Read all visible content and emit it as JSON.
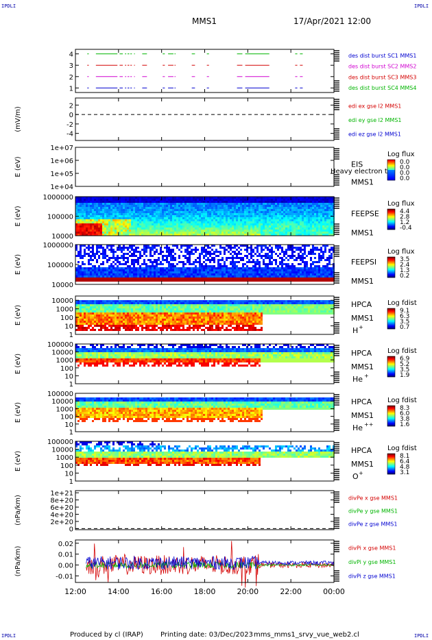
{
  "corner_tag": "IPDLI",
  "header": {
    "title": "MMS1",
    "datetime": "17/Apr/2021 12:00"
  },
  "footer": {
    "produced_by": "Produced by cl (IRAP)",
    "printing_date": "Printing date: 03/Dec/2023",
    "filename": "mms_mms1_srvy_vue_web2.cl"
  },
  "colors": {
    "red": "#d40000",
    "green": "#00b400",
    "blue": "#0000d0",
    "magenta": "#d000d0"
  },
  "chart_data": {
    "type": "multi-panel time series / spectrogram",
    "x": {
      "tick_labels": [
        "12:00",
        "14:00",
        "16:00",
        "18:00",
        "20:00",
        "22:00",
        "00:00"
      ],
      "tick_hours": [
        12,
        14,
        16,
        18,
        20,
        22,
        24
      ],
      "range_hours": [
        12,
        24
      ]
    },
    "panels": [
      {
        "id": "burst",
        "type": "timeline",
        "yticks": [
          "4",
          "3",
          "2",
          "1"
        ],
        "tick_values": [
          4,
          3,
          2,
          1
        ],
        "ylim": [
          0.6,
          4.4
        ],
        "legend": [
          {
            "text": "des dist burst SC1 MMS1",
            "color": "#0000d0"
          },
          {
            "text": "des dist burst SC2 MMS2",
            "color": "#d000d0"
          },
          {
            "text": "des dist burst SC3 MMS3",
            "color": "#d40000"
          },
          {
            "text": "des dist burst SC4 MMS4",
            "color": "#00b400"
          }
        ],
        "series": [
          {
            "level": 4,
            "color": "#00b400"
          },
          {
            "level": 3,
            "color": "#d40000"
          },
          {
            "level": 2,
            "color": "#d000d0"
          },
          {
            "level": 1,
            "color": "#0000d0"
          }
        ],
        "segments_hours": [
          [
            12.55,
            12.62
          ],
          [
            12.95,
            13.95
          ],
          [
            14.05,
            14.2
          ],
          [
            14.3,
            14.36
          ],
          [
            14.42,
            14.5
          ],
          [
            14.55,
            14.62
          ],
          [
            14.72,
            14.76
          ],
          [
            15.1,
            15.32
          ],
          [
            16.05,
            16.15
          ],
          [
            16.3,
            16.55
          ],
          [
            16.6,
            16.65
          ],
          [
            17.4,
            17.55
          ],
          [
            18.1,
            18.2
          ],
          [
            19.5,
            19.75
          ],
          [
            19.88,
            21.0
          ],
          [
            22.2,
            22.3
          ],
          [
            22.42,
            22.55
          ]
        ]
      },
      {
        "id": "edi",
        "type": "line",
        "ylabel": "(mV/m)",
        "yticks": [
          "2",
          "0",
          "-2",
          "-4"
        ],
        "tick_values": [
          2,
          0,
          -2,
          -4
        ],
        "ylim": [
          -5.5,
          3.5
        ],
        "dashed_zero": true,
        "legend": [
          {
            "text": "edi ex gse l2 MMS1",
            "color": "#d40000"
          },
          {
            "text": "edi ey gse l2 MMS1",
            "color": "#00b400"
          },
          {
            "text": "edi ez gse l2 MMS1",
            "color": "#0000d0"
          }
        ]
      },
      {
        "id": "eis",
        "type": "spectrogram",
        "ylabel": "E (eV)",
        "yticks": [
          "1e+07",
          "1e+06",
          "1e+05",
          "1e+04"
        ],
        "tick_values": [
          7,
          6,
          5,
          4
        ],
        "ylim": [
          4,
          7
        ],
        "scale": "log",
        "labels": [
          "EIS",
          "MMS1"
        ],
        "overlay_text": "Heavy electron to",
        "colorbar": {
          "title": "Log flux",
          "ticks": [
            "0.0",
            "0.0",
            "0.0",
            "0.0"
          ]
        },
        "empty": true
      },
      {
        "id": "feepse",
        "type": "spectrogram",
        "ylabel": "E (eV)",
        "yticks": [
          "1000000",
          "100000",
          "10000"
        ],
        "tick_values": [
          6,
          5,
          4
        ],
        "ylim": [
          4,
          6
        ],
        "scale": "log",
        "labels": [
          "FEEPSE",
          "MMS1"
        ],
        "colorbar": {
          "title": "Log flux",
          "ticks": [
            "4.4",
            "2.8",
            "1.2",
            "-0.4"
          ]
        }
      },
      {
        "id": "feepsi",
        "type": "spectrogram",
        "ylabel": "E (eV)",
        "yticks": [
          "1000000",
          "100000",
          "10000"
        ],
        "tick_values": [
          6,
          5,
          4
        ],
        "ylim": [
          4,
          6
        ],
        "scale": "log",
        "labels": [
          "FEEPSI",
          "MMS1"
        ],
        "colorbar": {
          "title": "Log flux",
          "ticks": [
            "3.5",
            "2.4",
            "1.3",
            "0.2"
          ]
        }
      },
      {
        "id": "hpca_h",
        "type": "spectrogram",
        "ylabel": "E (eV)",
        "yticks": [
          "10000",
          "1000",
          "100",
          "10",
          "1"
        ],
        "tick_values": [
          4,
          3,
          2,
          1,
          0
        ],
        "ylim": [
          0,
          4.5
        ],
        "scale": "log",
        "labels": [
          "HPCA",
          "MMS1"
        ],
        "species": "H",
        "charge": "+",
        "colorbar": {
          "title": "Log fdist",
          "ticks": [
            "9.1",
            "6.3",
            "3.5",
            "0.7"
          ]
        }
      },
      {
        "id": "hpca_he1",
        "type": "spectrogram",
        "ylabel": "E (eV)",
        "yticks": [
          "100000",
          "10000",
          "1000",
          "100",
          "10",
          "1"
        ],
        "tick_values": [
          5,
          4,
          3,
          2,
          1,
          0
        ],
        "ylim": [
          0,
          5
        ],
        "scale": "log",
        "labels": [
          "HPCA",
          "MMS1"
        ],
        "species": "He",
        "charge": "+",
        "colorbar": {
          "title": "Log fdist",
          "ticks": [
            "6.9",
            "5.2",
            "3.5",
            "1.9"
          ]
        }
      },
      {
        "id": "hpca_he2",
        "type": "spectrogram",
        "ylabel": "E (eV)",
        "yticks": [
          "100000",
          "10000",
          "1000",
          "100",
          "10",
          "1"
        ],
        "tick_values": [
          5,
          4,
          3,
          2,
          1,
          0
        ],
        "ylim": [
          0,
          5
        ],
        "scale": "log",
        "labels": [
          "HPCA",
          "MMS1"
        ],
        "species": "He",
        "charge": "++",
        "colorbar": {
          "title": "Log fdist",
          "ticks": [
            "8.3",
            "6.0",
            "3.8",
            "1.6"
          ]
        }
      },
      {
        "id": "hpca_o",
        "type": "spectrogram",
        "ylabel": "E (eV)",
        "yticks": [
          "100000",
          "10000",
          "1000",
          "100",
          "10",
          "1"
        ],
        "tick_values": [
          5,
          4,
          3,
          2,
          1,
          0
        ],
        "ylim": [
          0,
          5
        ],
        "scale": "log",
        "labels": [
          "HPCA",
          "MMS1"
        ],
        "species": "O",
        "charge": "+",
        "colorbar": {
          "title": "Log fdist",
          "ticks": [
            "8.1",
            "6.4",
            "4.8",
            "3.1"
          ]
        }
      },
      {
        "id": "divpe",
        "type": "line",
        "ylabel": "(nPa/km)",
        "yticks": [
          "1e+21",
          "8e+20",
          "6e+20",
          "4e+20",
          "2e+20",
          "0"
        ],
        "tick_values": [
          10,
          8,
          6,
          4,
          2,
          0
        ],
        "ylim": [
          -0.3,
          10.6
        ],
        "dashed_zero": true,
        "legend": [
          {
            "text": "divPe x gse MMS1",
            "color": "#d40000"
          },
          {
            "text": "divPe y gse MMS1",
            "color": "#00b400"
          },
          {
            "text": "divPe z gse MMS1",
            "color": "#0000d0"
          }
        ]
      },
      {
        "id": "divpi",
        "type": "line",
        "ylabel": "(nPa/km)",
        "yticks": [
          "0.02",
          "0.01",
          "0.00",
          "-0.01"
        ],
        "tick_values": [
          0.02,
          0.01,
          0,
          -0.01
        ],
        "ylim": [
          -0.016,
          0.023
        ],
        "legend": [
          {
            "text": "divPi x gse MMS1",
            "color": "#d40000"
          },
          {
            "text": "divPi y gse MMS1",
            "color": "#00b400"
          },
          {
            "text": "divPi z gse MMS1",
            "color": "#0000d0"
          }
        ]
      }
    ]
  }
}
